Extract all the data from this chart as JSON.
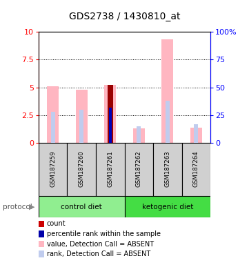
{
  "title": "GDS2738 / 1430810_at",
  "samples": [
    "GSM187259",
    "GSM187260",
    "GSM187261",
    "GSM187262",
    "GSM187263",
    "GSM187264"
  ],
  "group1_name": "control diet",
  "group1_color": "#90ee90",
  "group2_name": "ketogenic diet",
  "group2_color": "#44dd44",
  "pink_vals": [
    5.1,
    4.8,
    5.2,
    1.3,
    9.3,
    1.4
  ],
  "dark_red_vals": [
    0.0,
    0.0,
    5.2,
    0.0,
    0.0,
    0.0
  ],
  "light_blue_rank_vals": [
    28,
    30,
    0,
    15,
    38,
    17
  ],
  "blue_percentile_vals": [
    0,
    0,
    32,
    0,
    0,
    0
  ],
  "ylim_left": [
    0,
    10
  ],
  "ylim_right": [
    0,
    100
  ],
  "yticks_left": [
    0,
    2.5,
    5.0,
    7.5,
    10.0
  ],
  "yticks_right": [
    0,
    25,
    50,
    75,
    100
  ],
  "pink_color": "#ffb6c1",
  "dark_red_color": "#990000",
  "blue_color": "#0000bb",
  "light_blue_color": "#c0ccee",
  "sample_box_color": "#d0d0d0",
  "legend_items": [
    {
      "label": "count",
      "color": "#cc0000"
    },
    {
      "label": "percentile rank within the sample",
      "color": "#0000aa"
    },
    {
      "label": "value, Detection Call = ABSENT",
      "color": "#ffb6c1"
    },
    {
      "label": "rank, Detection Call = ABSENT",
      "color": "#c0ccee"
    }
  ]
}
